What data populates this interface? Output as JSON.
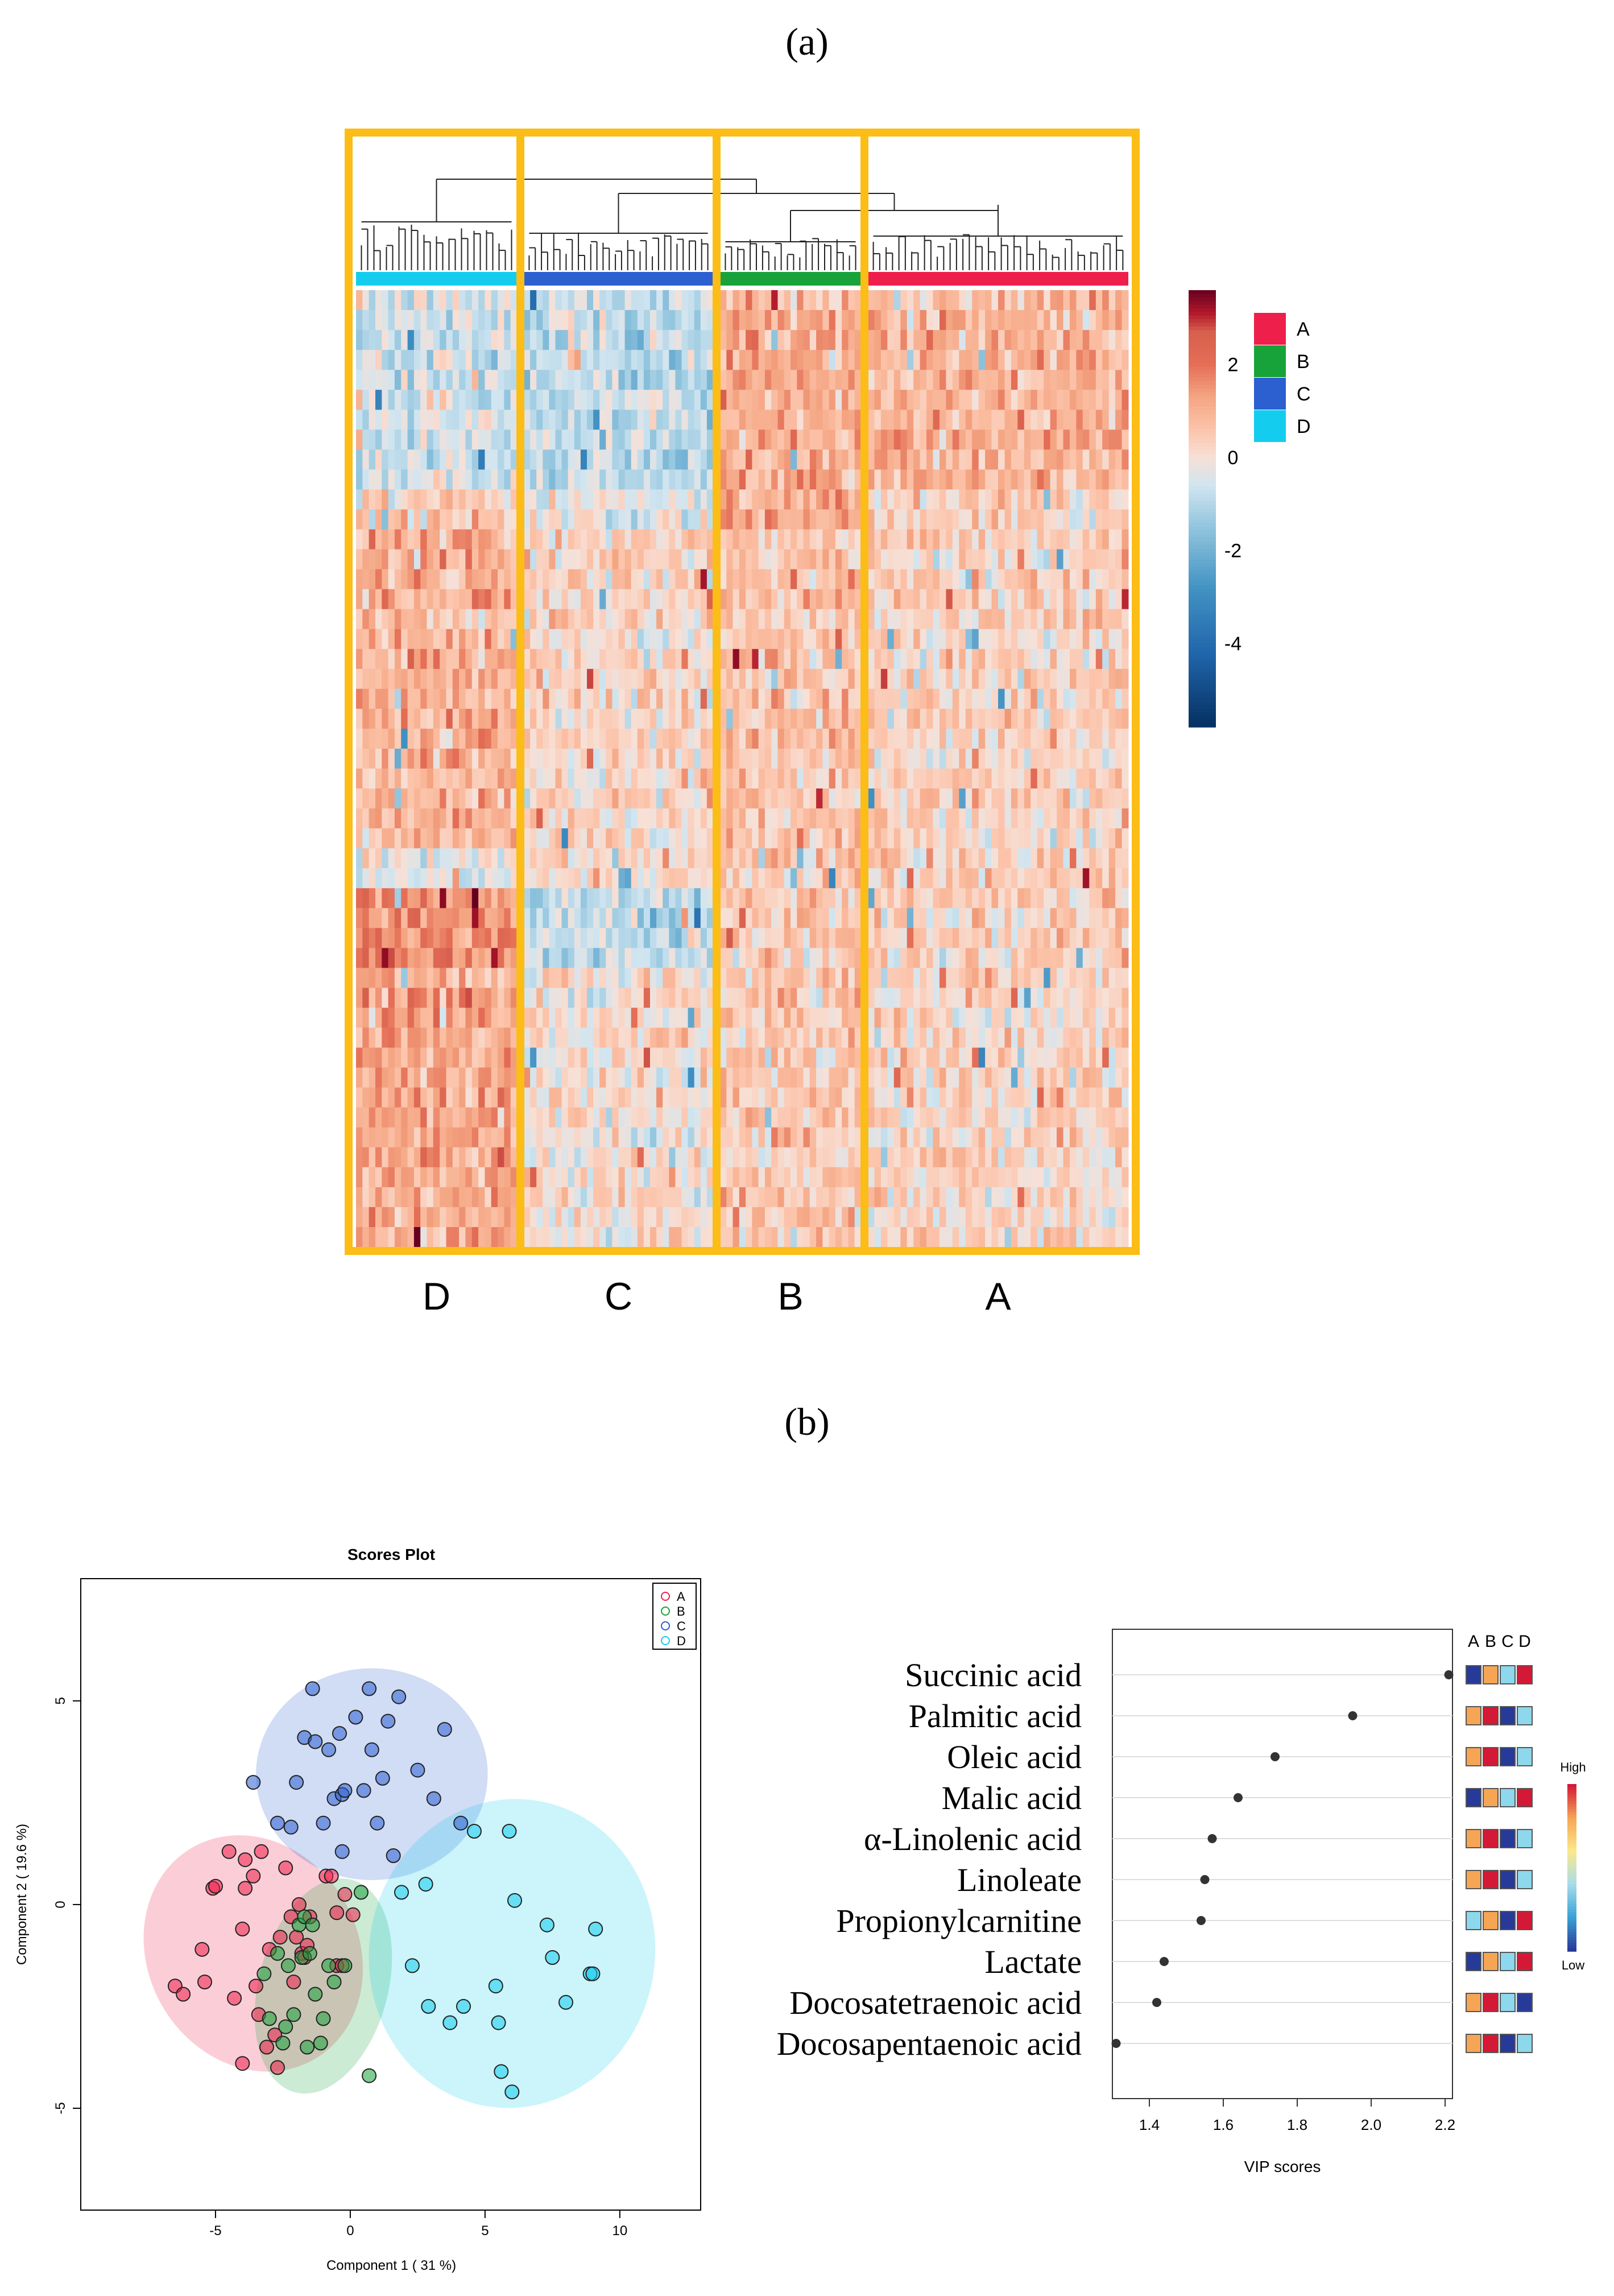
{
  "panel_labels": {
    "a": "(a)",
    "b": "(b)"
  },
  "colors": {
    "group_A": "#ee1f4b",
    "group_B": "#17a33a",
    "group_C": "#2c5fd0",
    "group_D": "#14cdee",
    "frame": "#fbbd16",
    "scale_high": "#67001f",
    "scale_mid": "#f7f7f7",
    "scale_low": "#053061"
  },
  "chart_data": [
    {
      "type": "heatmap",
      "title": "",
      "cluster_order": [
        "D",
        "C",
        "B",
        "A"
      ],
      "cluster_sample_counts": [
        25,
        30,
        22,
        40
      ],
      "bottom_labels": [
        "D",
        "C",
        "B",
        "A"
      ],
      "color_scale": {
        "ticks": [
          "2",
          "0",
          "-2",
          "-4"
        ],
        "range": [
          -5.8,
          3.6
        ]
      },
      "legend": [
        {
          "label": "A",
          "color": "#ee1f4b"
        },
        {
          "label": "B",
          "color": "#17a33a"
        },
        {
          "label": "C",
          "color": "#2c5fd0"
        },
        {
          "label": "D",
          "color": "#14cdee"
        }
      ],
      "blocks": [
        {
          "rows": [
            0,
            10
          ],
          "means": {
            "D": -0.6,
            "C": -0.8,
            "B": 1.0,
            "A": 0.9
          }
        },
        {
          "rows": [
            10,
            12
          ],
          "means": {
            "D": 0.4,
            "C": -0.2,
            "B": 1.2,
            "A": 0.2
          }
        },
        {
          "rows": [
            12,
            28
          ],
          "means": {
            "D": 0.9,
            "C": 0.2,
            "B": 0.6,
            "A": 0.3
          }
        },
        {
          "rows": [
            28,
            30
          ],
          "means": {
            "D": -0.3,
            "C": 0.2,
            "B": 0.5,
            "A": 0.4
          }
        },
        {
          "rows": [
            30,
            34
          ],
          "means": {
            "D": 1.6,
            "C": -0.8,
            "B": 0.5,
            "A": 0.3
          }
        },
        {
          "rows": [
            34,
            48
          ],
          "means": {
            "D": 1.1,
            "C": 0.0,
            "B": 0.5,
            "A": 0.2
          }
        }
      ]
    },
    {
      "type": "scatter",
      "title": "Scores Plot",
      "xlabel": "Component 1 ( 31 %)",
      "ylabel": "Component 2 ( 19.6 %)",
      "xlim": [
        -10,
        13
      ],
      "ylim": [
        -7.5,
        8
      ],
      "xticks": [
        -5,
        0,
        5,
        10
      ],
      "yticks": [
        -5,
        0,
        5
      ],
      "legend_placement": "top-right",
      "series": [
        {
          "name": "A",
          "color": "#ee1f4b",
          "ellipse": {
            "cx": -3.6,
            "cy": -1.2,
            "rx": 3.9,
            "ry": 3.0,
            "angle": 30
          },
          "points": [
            [
              -6.5,
              -2.0
            ],
            [
              -6.2,
              -2.2
            ],
            [
              -5.5,
              -1.1
            ],
            [
              -5.4,
              -1.9
            ],
            [
              -5.1,
              0.4
            ],
            [
              -5.0,
              0.45
            ],
            [
              -4.5,
              1.3
            ],
            [
              -4.3,
              -2.3
            ],
            [
              -4.0,
              -0.6
            ],
            [
              -4.0,
              -3.9
            ],
            [
              -3.9,
              0.4
            ],
            [
              -3.9,
              1.1
            ],
            [
              -3.6,
              0.7
            ],
            [
              -3.5,
              -2.0
            ],
            [
              -3.4,
              -2.7
            ],
            [
              -3.3,
              1.3
            ],
            [
              -3.1,
              -3.5
            ],
            [
              -3.0,
              -1.1
            ],
            [
              -2.8,
              -3.2
            ],
            [
              -2.7,
              -4.0
            ],
            [
              -2.6,
              -0.8
            ],
            [
              -2.4,
              0.9
            ],
            [
              -2.2,
              -0.3
            ],
            [
              -2.1,
              -1.9
            ],
            [
              -2.0,
              -0.8
            ],
            [
              -1.9,
              0.0
            ],
            [
              -1.8,
              -1.2
            ],
            [
              -1.7,
              -1.3
            ],
            [
              -1.6,
              -1.0
            ],
            [
              -1.5,
              -0.3
            ],
            [
              -0.9,
              0.7
            ],
            [
              -0.7,
              0.7
            ],
            [
              -0.5,
              -0.2
            ],
            [
              -0.5,
              -1.5
            ],
            [
              -0.3,
              -1.5
            ],
            [
              -0.2,
              0.25
            ],
            [
              0.1,
              -0.25
            ]
          ]
        },
        {
          "name": "B",
          "color": "#17a33a",
          "ellipse": {
            "cx": -1.0,
            "cy": -2.0,
            "rx": 2.4,
            "ry": 2.7,
            "angle": -15
          },
          "points": [
            [
              -3.2,
              -1.7
            ],
            [
              -3.0,
              -2.8
            ],
            [
              -2.7,
              -1.2
            ],
            [
              -2.5,
              -3.4
            ],
            [
              -2.4,
              -3.0
            ],
            [
              -2.3,
              -1.5
            ],
            [
              -2.1,
              -2.7
            ],
            [
              -1.9,
              -0.5
            ],
            [
              -1.8,
              -1.3
            ],
            [
              -1.7,
              -0.3
            ],
            [
              -1.6,
              -3.5
            ],
            [
              -1.5,
              -1.2
            ],
            [
              -1.4,
              -0.5
            ],
            [
              -1.3,
              -2.2
            ],
            [
              -1.1,
              -3.4
            ],
            [
              -1.0,
              -2.8
            ],
            [
              -0.8,
              -1.5
            ],
            [
              -0.6,
              -1.9
            ],
            [
              -0.2,
              -1.5
            ],
            [
              0.4,
              0.3
            ],
            [
              0.7,
              -4.2
            ]
          ]
        },
        {
          "name": "C",
          "color": "#2c5fd0",
          "ellipse": {
            "cx": 0.8,
            "cy": 3.2,
            "rx": 4.3,
            "ry": 2.6,
            "angle": 0
          },
          "points": [
            [
              -3.6,
              3.0
            ],
            [
              -2.7,
              2.0
            ],
            [
              -2.2,
              1.9
            ],
            [
              -2.0,
              3.0
            ],
            [
              -1.7,
              4.1
            ],
            [
              -1.4,
              5.3
            ],
            [
              -1.3,
              4.0
            ],
            [
              -1.0,
              2.0
            ],
            [
              -0.8,
              3.8
            ],
            [
              -0.6,
              2.6
            ],
            [
              -0.4,
              4.2
            ],
            [
              -0.3,
              2.7
            ],
            [
              -0.2,
              2.8
            ],
            [
              -0.3,
              1.3
            ],
            [
              0.2,
              4.6
            ],
            [
              0.5,
              2.8
            ],
            [
              0.7,
              5.3
            ],
            [
              0.8,
              3.8
            ],
            [
              1.0,
              2.0
            ],
            [
              1.2,
              3.1
            ],
            [
              1.4,
              4.5
            ],
            [
              1.6,
              1.2
            ],
            [
              1.8,
              5.1
            ],
            [
              2.5,
              3.3
            ],
            [
              3.1,
              2.6
            ],
            [
              3.5,
              4.3
            ],
            [
              4.1,
              2.0
            ]
          ]
        },
        {
          "name": "D",
          "color": "#14cdee",
          "ellipse": {
            "cx": 6.0,
            "cy": -1.2,
            "rx": 5.3,
            "ry": 3.8,
            "angle": -10
          },
          "points": [
            [
              1.9,
              0.3
            ],
            [
              2.3,
              -1.5
            ],
            [
              2.8,
              0.5
            ],
            [
              2.9,
              -2.5
            ],
            [
              3.7,
              -2.9
            ],
            [
              4.2,
              -2.5
            ],
            [
              4.6,
              1.8
            ],
            [
              5.4,
              -2.0
            ],
            [
              5.5,
              -2.9
            ],
            [
              5.6,
              -4.1
            ],
            [
              5.9,
              1.8
            ],
            [
              6.0,
              -4.6
            ],
            [
              6.1,
              0.1
            ],
            [
              7.3,
              -0.5
            ],
            [
              7.5,
              -1.3
            ],
            [
              8.0,
              -2.4
            ],
            [
              8.9,
              -1.7
            ],
            [
              9.0,
              -1.7
            ],
            [
              9.1,
              -0.6
            ]
          ]
        }
      ]
    },
    {
      "type": "scatter",
      "subtype": "vip_dot_plot",
      "xlabel": "VIP scores",
      "xlim": [
        1.3,
        2.22
      ],
      "xticks": [
        "1.4",
        "1.6",
        "1.8",
        "2.0",
        "2.2"
      ],
      "heat_columns": [
        "A",
        "B",
        "C",
        "D"
      ],
      "scale_labels": {
        "high": "High",
        "low": "Low"
      },
      "features": [
        {
          "name": "Succinic acid",
          "vip": 2.21,
          "levels": [
            "low",
            "mid",
            "midlow",
            "high"
          ]
        },
        {
          "name": "Palmitic acid",
          "vip": 1.95,
          "levels": [
            "mid",
            "high",
            "low",
            "midlow"
          ]
        },
        {
          "name": "Oleic acid",
          "vip": 1.74,
          "levels": [
            "mid",
            "high",
            "low",
            "midlow"
          ]
        },
        {
          "name": "Malic acid",
          "vip": 1.64,
          "levels": [
            "low",
            "mid",
            "midlow",
            "high"
          ]
        },
        {
          "name": "α-Linolenic acid",
          "vip": 1.57,
          "levels": [
            "mid",
            "high",
            "low",
            "midlow"
          ]
        },
        {
          "name": "Linoleate",
          "vip": 1.55,
          "levels": [
            "mid",
            "high",
            "low",
            "midlow"
          ]
        },
        {
          "name": "Propionylcarnitine",
          "vip": 1.54,
          "levels": [
            "midlow",
            "mid",
            "low",
            "high"
          ]
        },
        {
          "name": "Lactate",
          "vip": 1.44,
          "levels": [
            "low",
            "mid",
            "midlow",
            "high"
          ]
        },
        {
          "name": "Docosatetraenoic acid",
          "vip": 1.42,
          "levels": [
            "mid",
            "high",
            "midlow",
            "low"
          ]
        },
        {
          "name": "Docosapentaenoic acid",
          "vip": 1.31,
          "levels": [
            "mid",
            "high",
            "low",
            "midlow"
          ]
        }
      ]
    }
  ]
}
